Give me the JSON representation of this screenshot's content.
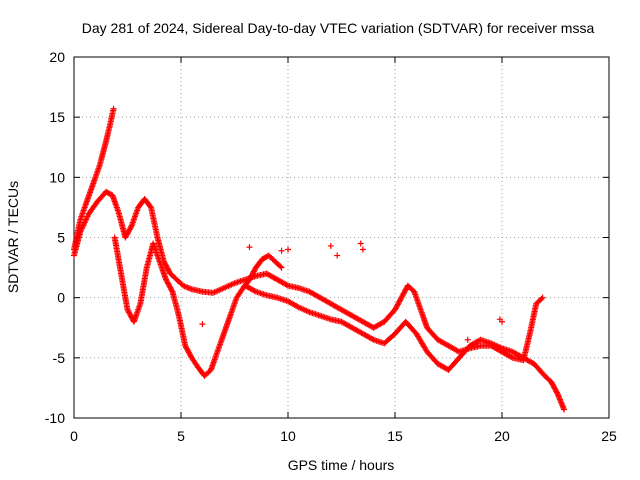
{
  "chart_data": {
    "type": "scatter",
    "title": "Day 281 of 2024, Sidereal Day-to-day VTEC variation (SDTVAR) for receiver mssa",
    "xlabel": "GPS time / hours",
    "ylabel": "SDTVAR / TECUs",
    "xlim": [
      0,
      25
    ],
    "ylim": [
      -10,
      20
    ],
    "xticks": [
      "0",
      "5",
      "10",
      "15",
      "20",
      "25"
    ],
    "yticks": [
      "-10",
      "-5",
      "0",
      "5",
      "10",
      "15",
      "20"
    ],
    "grid": true,
    "marker": "+",
    "series": [
      {
        "name": "track-a",
        "color": "#ff0000",
        "x": [
          0.0,
          0.3,
          0.6,
          0.9,
          1.2,
          1.5,
          1.7,
          1.85
        ],
        "y": [
          4.0,
          6.5,
          8.0,
          9.5,
          11.0,
          13.0,
          14.5,
          15.7
        ]
      },
      {
        "name": "track-b",
        "color": "#ff0000",
        "x": [
          0.0,
          0.3,
          0.7,
          1.1,
          1.5,
          1.8,
          2.1,
          2.4,
          2.7,
          3.0,
          3.3,
          3.6,
          3.9,
          4.2,
          4.5,
          4.8,
          5.1,
          5.5,
          6.0,
          6.5,
          7.0,
          7.5,
          8.0,
          8.5,
          9.0,
          9.5,
          10.0,
          10.5,
          11.0,
          11.5,
          12.0,
          12.5,
          13.0,
          13.5,
          14.0,
          14.5,
          15.0,
          15.3,
          15.6,
          15.9,
          16.2,
          16.5,
          17.0,
          17.5,
          18.0,
          18.5,
          19.0,
          19.5,
          20.0,
          20.5,
          21.0,
          21.3,
          21.6,
          21.9
        ],
        "y": [
          3.5,
          5.5,
          7.0,
          8.0,
          8.8,
          8.5,
          7.0,
          5.0,
          6.0,
          7.5,
          8.2,
          7.5,
          5.0,
          3.0,
          2.0,
          1.5,
          1.0,
          0.7,
          0.5,
          0.4,
          0.8,
          1.2,
          1.5,
          1.8,
          2.0,
          1.5,
          1.0,
          0.8,
          0.5,
          0.0,
          -0.5,
          -1.0,
          -1.5,
          -2.0,
          -2.5,
          -2.0,
          -1.0,
          0.0,
          1.0,
          0.5,
          -1.0,
          -2.5,
          -3.5,
          -4.0,
          -4.5,
          -4.2,
          -4.0,
          -4.0,
          -4.5,
          -5.0,
          -5.2,
          -3.0,
          -0.5,
          0.0
        ]
      },
      {
        "name": "track-c",
        "color": "#ff0000",
        "x": [
          1.9,
          2.2,
          2.5,
          2.8,
          3.1,
          3.4,
          3.7,
          4.0,
          4.3,
          4.6,
          4.9,
          5.2,
          5.5,
          5.8,
          6.1,
          6.4,
          6.7,
          7.0,
          7.3,
          7.6,
          7.9,
          8.2,
          8.5,
          8.8,
          9.1,
          9.4,
          9.7
        ],
        "y": [
          5.0,
          2.0,
          -1.0,
          -2.0,
          -0.5,
          2.5,
          4.5,
          3.0,
          1.5,
          0.5,
          -1.5,
          -4.0,
          -5.0,
          -5.8,
          -6.5,
          -6.0,
          -4.5,
          -3.0,
          -1.5,
          0.0,
          0.8,
          1.5,
          2.5,
          3.2,
          3.5,
          3.0,
          2.5
        ]
      },
      {
        "name": "track-d",
        "color": "#ff0000",
        "x": [
          8.0,
          8.5,
          9.0,
          9.5,
          10.0,
          10.5,
          11.0,
          11.5,
          12.0,
          12.5,
          13.0,
          13.5,
          14.0,
          14.5,
          15.0,
          15.5,
          16.0,
          16.5,
          17.0,
          17.5,
          18.0,
          18.5,
          19.0,
          19.5,
          20.0,
          20.5,
          21.0,
          21.5,
          22.0,
          22.3,
          22.6,
          22.9
        ],
        "y": [
          1.0,
          0.5,
          0.2,
          0.0,
          -0.3,
          -0.8,
          -1.2,
          -1.5,
          -1.8,
          -2.0,
          -2.5,
          -3.0,
          -3.5,
          -3.8,
          -3.0,
          -2.0,
          -3.0,
          -4.5,
          -5.5,
          -6.0,
          -5.0,
          -4.0,
          -3.5,
          -3.8,
          -4.2,
          -4.5,
          -5.0,
          -5.5,
          -6.5,
          -7.0,
          -8.0,
          -9.3
        ]
      },
      {
        "name": "isolated",
        "color": "#ff0000",
        "x": [
          6.0,
          8.2,
          9.7,
          10.0,
          12.0,
          12.3,
          13.4,
          13.5,
          18.4,
          19.9,
          20.0
        ],
        "y": [
          -2.2,
          4.2,
          3.9,
          4.0,
          4.3,
          3.5,
          4.5,
          4.0,
          -3.5,
          -1.8,
          -2.0
        ]
      }
    ]
  }
}
